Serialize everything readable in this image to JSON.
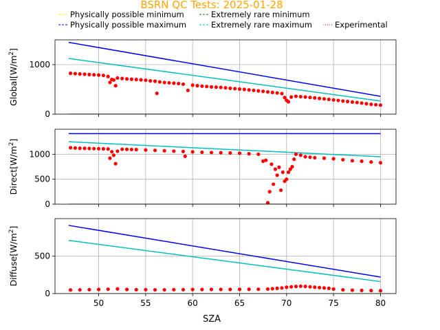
{
  "figure": {
    "title": "BSRN QC Tests: 2025-01-28",
    "title_color": "#ffa500"
  },
  "legend": {
    "placement": "top",
    "items": [
      {
        "label": "Physically possible minimum",
        "color": "#ffff00",
        "style": "dashed"
      },
      {
        "label": "Extremely rare minimum",
        "color": "#008000",
        "style": "dashed"
      },
      {
        "label": "Physically possible maximum",
        "color": "#0000ff",
        "style": "dashed"
      },
      {
        "label": "Extremely rare maximum",
        "color": "#00bfbf",
        "style": "dashed"
      },
      {
        "label": "Experimental",
        "color": "#ff0000",
        "style": "dotted"
      }
    ]
  },
  "chart_data": [
    {
      "type": "line",
      "ylabel": "Global[W/m$^2$]",
      "ylabel_main": "Global[W/m",
      "ylabel_sup": "2",
      "ylabel_end": "]",
      "xlim": [
        45.35,
        81.65
      ],
      "ylim": [
        0,
        1500
      ],
      "yticks": [
        0,
        1000
      ],
      "grid": true,
      "series": [
        {
          "name": "Physically possible minimum",
          "color": "#ffff00",
          "x": [
            46.8,
            80.0
          ],
          "y": [
            -4,
            -4
          ]
        },
        {
          "name": "Extremely rare minimum",
          "color": "#008000",
          "x": [
            46.8,
            80.0
          ],
          "y": [
            -2,
            -2
          ]
        },
        {
          "name": "Physically possible maximum",
          "color": "#0000ff",
          "x": [
            46.8,
            80.0
          ],
          "y": [
            1450,
            360
          ]
        },
        {
          "name": "Extremely rare maximum",
          "color": "#00bfbf",
          "x": [
            46.8,
            80.0
          ],
          "y": [
            1125,
            265
          ]
        },
        {
          "name": "Experimental",
          "color": "#ff0000",
          "marker": "dot",
          "x": [
            47.0,
            47.5,
            48.0,
            48.5,
            49.0,
            49.5,
            50.0,
            50.5,
            51.0,
            51.2,
            51.4,
            51.6,
            51.8,
            52.0,
            52.5,
            53.0,
            53.5,
            54.0,
            54.5,
            55.0,
            55.5,
            56.0,
            56.2,
            56.5,
            57.0,
            57.5,
            58.0,
            58.5,
            59.0,
            59.5,
            60.0,
            60.5,
            61.0,
            61.5,
            62.0,
            62.5,
            63.0,
            63.5,
            64.0,
            64.5,
            65.0,
            65.5,
            66.0,
            66.5,
            67.0,
            67.5,
            68.0,
            68.5,
            69.0,
            69.5,
            69.8,
            70.0,
            70.2,
            70.5,
            71.0,
            71.5,
            72.0,
            72.5,
            73.0,
            73.5,
            74.0,
            74.5,
            75.0,
            75.5,
            76.0,
            76.5,
            77.0,
            77.5,
            78.0,
            78.5,
            79.0,
            79.5,
            80.0
          ],
          "y": [
            825,
            818,
            812,
            806,
            800,
            795,
            790,
            782,
            760,
            640,
            700,
            690,
            575,
            730,
            720,
            712,
            705,
            700,
            693,
            685,
            672,
            665,
            420,
            650,
            640,
            633,
            625,
            617,
            605,
            480,
            585,
            575,
            565,
            558,
            550,
            545,
            540,
            532,
            522,
            515,
            507,
            500,
            490,
            480,
            470,
            460,
            448,
            438,
            428,
            415,
            335,
            280,
            250,
            345,
            360,
            352,
            345,
            337,
            328,
            318,
            308,
            298,
            287,
            277,
            265,
            255,
            245,
            235,
            223,
            210,
            198,
            190,
            183
          ]
        }
      ]
    },
    {
      "type": "line",
      "ylabel": "Direct[W/m$^2$]",
      "ylabel_main": "Direct[W/m",
      "ylabel_sup": "2",
      "ylabel_end": "]",
      "xlim": [
        45.35,
        81.65
      ],
      "ylim": [
        0,
        1500
      ],
      "yticks": [
        0,
        500,
        1000
      ],
      "grid": true,
      "series": [
        {
          "name": "Physically possible minimum",
          "color": "#ffff00",
          "x": [
            46.8,
            80.0
          ],
          "y": [
            -4,
            -4
          ]
        },
        {
          "name": "Extremely rare minimum",
          "color": "#008000",
          "x": [
            46.8,
            80.0
          ],
          "y": [
            -2,
            -2
          ]
        },
        {
          "name": "Physically possible maximum",
          "color": "#0000ff",
          "x": [
            46.8,
            80.0
          ],
          "y": [
            1412,
            1412
          ]
        },
        {
          "name": "Extremely rare maximum",
          "color": "#00bfbf",
          "x": [
            46.8,
            80.0
          ],
          "y": [
            1250,
            950
          ]
        },
        {
          "name": "Experimental",
          "color": "#ff0000",
          "marker": "dot",
          "x": [
            47.0,
            47.5,
            48.0,
            48.5,
            49.0,
            49.5,
            50.0,
            50.5,
            51.0,
            51.2,
            51.4,
            51.6,
            51.8,
            52.0,
            52.5,
            53.0,
            53.5,
            54.0,
            55.0,
            56.0,
            57.0,
            58.0,
            59.0,
            59.2,
            60.0,
            61.0,
            62.0,
            63.0,
            64.0,
            65.0,
            66.0,
            67.0,
            67.5,
            67.8,
            68.0,
            68.2,
            68.4,
            68.6,
            68.8,
            69.0,
            69.2,
            69.4,
            69.6,
            69.8,
            70.0,
            70.2,
            70.4,
            70.6,
            70.8,
            71.0,
            71.5,
            72.0,
            72.5,
            73.0,
            74.0,
            75.0,
            76.0,
            77.0,
            78.0,
            79.0,
            80.0
          ],
          "y": [
            1130,
            1125,
            1120,
            1118,
            1115,
            1112,
            1110,
            1108,
            1105,
            920,
            1050,
            980,
            810,
            1060,
            1100,
            1098,
            1095,
            1092,
            1085,
            1078,
            1070,
            1062,
            1055,
            960,
            1048,
            1040,
            1035,
            1030,
            1025,
            1020,
            1010,
            1000,
            860,
            880,
            30,
            250,
            800,
            400,
            700,
            580,
            740,
            280,
            640,
            460,
            500,
            640,
            700,
            750,
            900,
            1000,
            980,
            950,
            940,
            930,
            920,
            910,
            890,
            870,
            860,
            845,
            830
          ]
        }
      ]
    },
    {
      "type": "line",
      "xlabel": "SZA",
      "ylabel": "Diffuse[W/m$^2$]",
      "ylabel_main": "Diffuse[W/m",
      "ylabel_sup": "2",
      "ylabel_end": "]",
      "xlim": [
        45.35,
        81.65
      ],
      "ylim": [
        0,
        1000
      ],
      "yticks": [
        0,
        500
      ],
      "xticks": [
        50,
        55,
        60,
        65,
        70,
        75,
        80
      ],
      "grid": true,
      "series": [
        {
          "name": "Physically possible minimum",
          "color": "#ffff00",
          "x": [
            46.8,
            80.0
          ],
          "y": [
            -4,
            -4
          ]
        },
        {
          "name": "Extremely rare minimum",
          "color": "#008000",
          "x": [
            46.8,
            80.0
          ],
          "y": [
            -2,
            -2
          ]
        },
        {
          "name": "Physically possible maximum",
          "color": "#0000ff",
          "x": [
            46.8,
            80.0
          ],
          "y": [
            910,
            220
          ]
        },
        {
          "name": "Extremely rare maximum",
          "color": "#00bfbf",
          "x": [
            46.8,
            80.0
          ],
          "y": [
            710,
            160
          ]
        },
        {
          "name": "Experimental",
          "color": "#ff0000",
          "marker": "dot",
          "x": [
            47.0,
            48.0,
            49.0,
            50.0,
            51.0,
            52.0,
            53.0,
            54.0,
            55.0,
            56.0,
            57.0,
            58.0,
            59.0,
            60.0,
            61.0,
            62.0,
            63.0,
            64.0,
            65.0,
            66.0,
            67.0,
            68.0,
            68.5,
            69.0,
            69.5,
            70.0,
            70.5,
            71.0,
            71.5,
            72.0,
            72.5,
            73.0,
            73.5,
            74.0,
            74.5,
            75.0,
            76.0,
            77.0,
            78.0,
            79.0,
            80.0
          ],
          "y": [
            48,
            50,
            52,
            55,
            58,
            62,
            55,
            52,
            52,
            50,
            50,
            52,
            52,
            54,
            54,
            55,
            55,
            55,
            56,
            57,
            58,
            60,
            65,
            70,
            75,
            85,
            90,
            95,
            98,
            95,
            90,
            85,
            80,
            75,
            70,
            60,
            50,
            45,
            42,
            40,
            38
          ]
        }
      ]
    }
  ]
}
